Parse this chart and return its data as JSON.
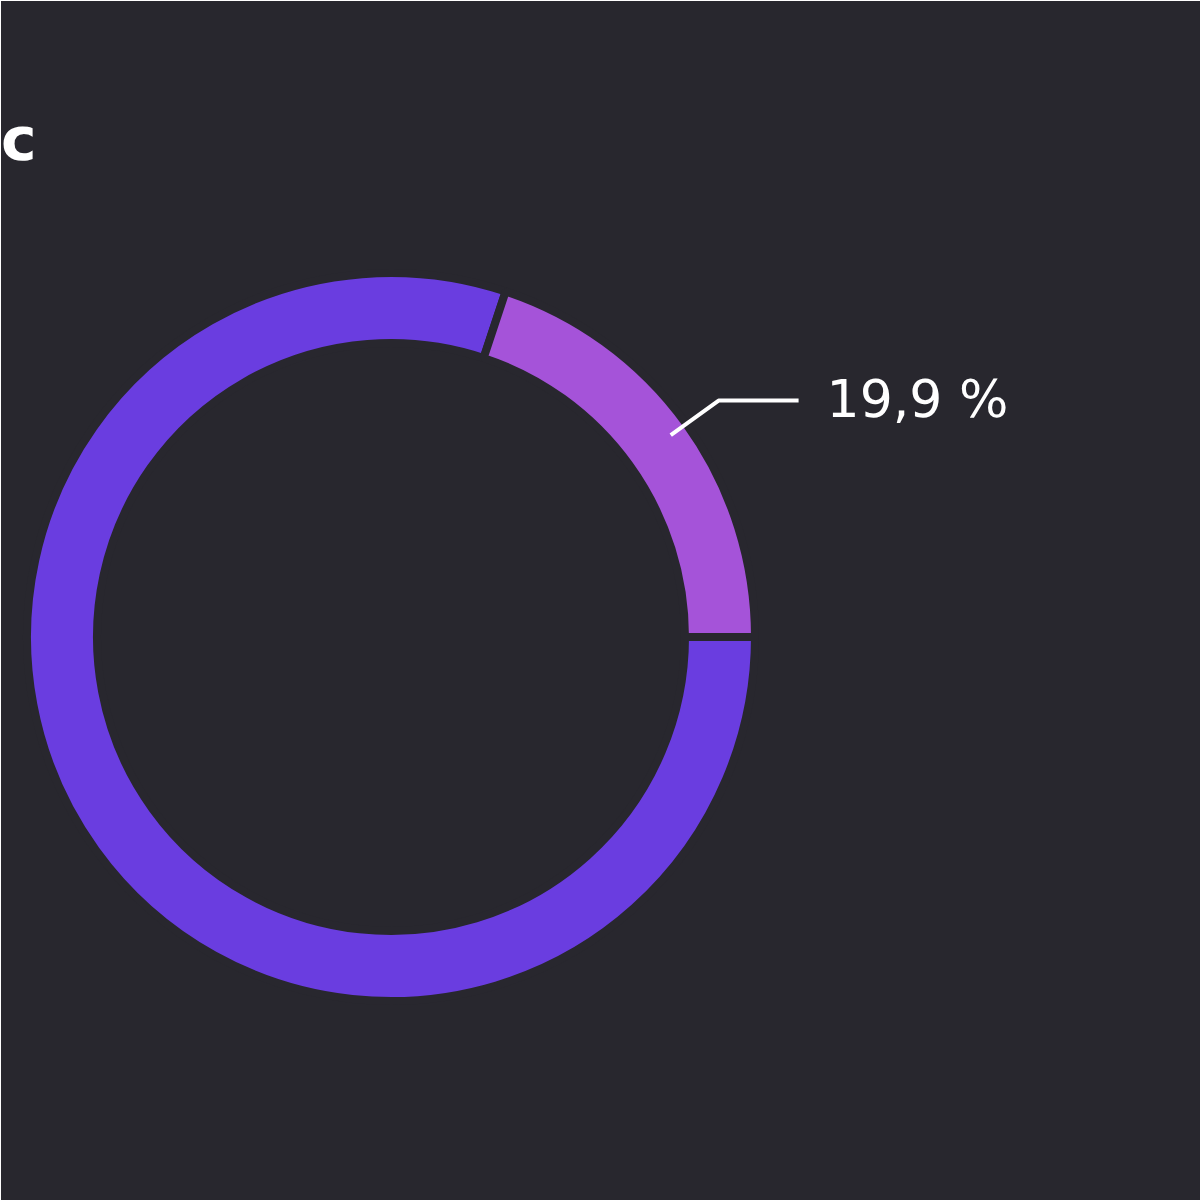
{
  "chart_data": {
    "type": "donut",
    "title": "c",
    "categories": [
      null,
      null
    ],
    "values": [
      80.1,
      19.9
    ],
    "colors": [
      "#6a3de0",
      "#a553d9"
    ],
    "value_labels": [
      null,
      "19,9 %"
    ]
  }
}
